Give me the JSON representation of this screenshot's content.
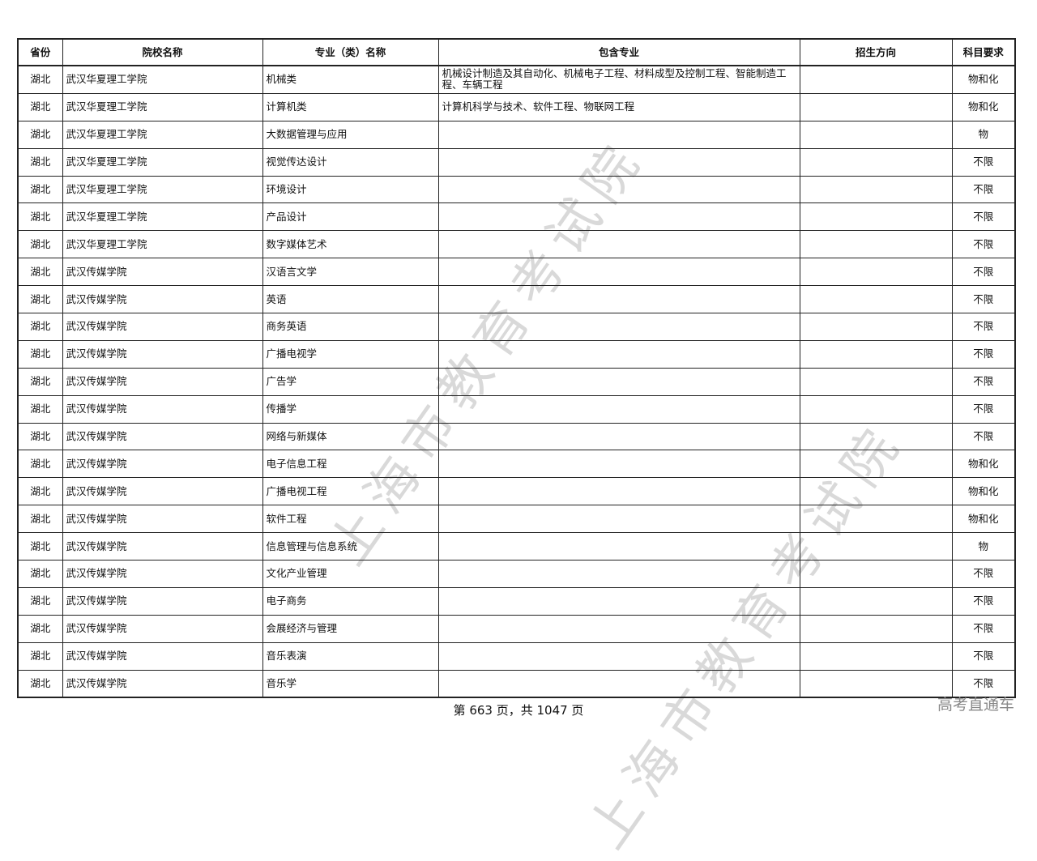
{
  "table": {
    "headers": [
      "省份",
      "院校名称",
      "专业（类）名称",
      "包含专业",
      "招生方向",
      "科目要求"
    ],
    "rows": [
      [
        "湖北",
        "武汉华夏理工学院",
        "机械类",
        "机械设计制造及其自动化、机械电子工程、材料成型及控制工程、智能制造工程、车辆工程",
        "",
        "物和化"
      ],
      [
        "湖北",
        "武汉华夏理工学院",
        "计算机类",
        "计算机科学与技术、软件工程、物联网工程",
        "",
        "物和化"
      ],
      [
        "湖北",
        "武汉华夏理工学院",
        "大数据管理与应用",
        "",
        "",
        "物"
      ],
      [
        "湖北",
        "武汉华夏理工学院",
        "视觉传达设计",
        "",
        "",
        "不限"
      ],
      [
        "湖北",
        "武汉华夏理工学院",
        "环境设计",
        "",
        "",
        "不限"
      ],
      [
        "湖北",
        "武汉华夏理工学院",
        "产品设计",
        "",
        "",
        "不限"
      ],
      [
        "湖北",
        "武汉华夏理工学院",
        "数字媒体艺术",
        "",
        "",
        "不限"
      ],
      [
        "湖北",
        "武汉传媒学院",
        "汉语言文学",
        "",
        "",
        "不限"
      ],
      [
        "湖北",
        "武汉传媒学院",
        "英语",
        "",
        "",
        "不限"
      ],
      [
        "湖北",
        "武汉传媒学院",
        "商务英语",
        "",
        "",
        "不限"
      ],
      [
        "湖北",
        "武汉传媒学院",
        "广播电视学",
        "",
        "",
        "不限"
      ],
      [
        "湖北",
        "武汉传媒学院",
        "广告学",
        "",
        "",
        "不限"
      ],
      [
        "湖北",
        "武汉传媒学院",
        "传播学",
        "",
        "",
        "不限"
      ],
      [
        "湖北",
        "武汉传媒学院",
        "网络与新媒体",
        "",
        "",
        "不限"
      ],
      [
        "湖北",
        "武汉传媒学院",
        "电子信息工程",
        "",
        "",
        "物和化"
      ],
      [
        "湖北",
        "武汉传媒学院",
        "广播电视工程",
        "",
        "",
        "物和化"
      ],
      [
        "湖北",
        "武汉传媒学院",
        "软件工程",
        "",
        "",
        "物和化"
      ],
      [
        "湖北",
        "武汉传媒学院",
        "信息管理与信息系统",
        "",
        "",
        "物"
      ],
      [
        "湖北",
        "武汉传媒学院",
        "文化产业管理",
        "",
        "",
        "不限"
      ],
      [
        "湖北",
        "武汉传媒学院",
        "电子商务",
        "",
        "",
        "不限"
      ],
      [
        "湖北",
        "武汉传媒学院",
        "会展经济与管理",
        "",
        "",
        "不限"
      ],
      [
        "湖北",
        "武汉传媒学院",
        "音乐表演",
        "",
        "",
        "不限"
      ],
      [
        "湖北",
        "武汉传媒学院",
        "音乐学",
        "",
        "",
        "不限"
      ]
    ]
  },
  "footer": {
    "page_text": "第 663 页，共 1047 页"
  },
  "brand": "高考直通车",
  "watermark": "上海市教育考试院"
}
